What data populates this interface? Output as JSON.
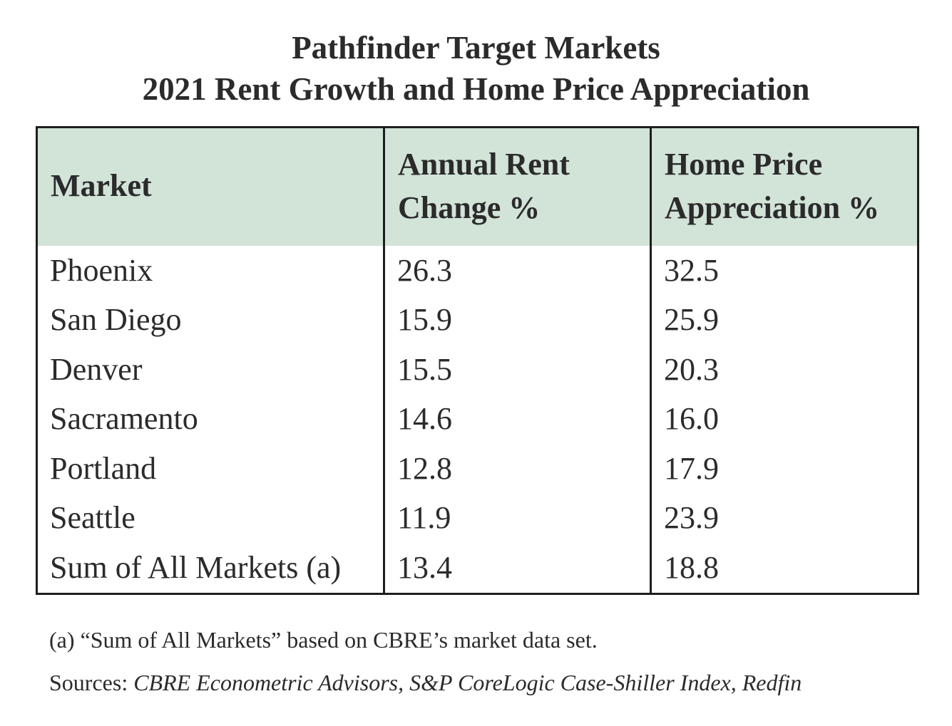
{
  "chart_data": {
    "type": "table",
    "title": "Pathfinder Target Markets",
    "subtitle": "2021 Rent Growth and Home Price Appreciation",
    "columns": [
      "Market",
      "Annual Rent Change %",
      "Home Price Appreciation %"
    ],
    "rows": [
      {
        "market": "Phoenix",
        "rent": "26.3",
        "home": "32.5"
      },
      {
        "market": "San Diego",
        "rent": "15.9",
        "home": "25.9"
      },
      {
        "market": "Denver",
        "rent": "15.5",
        "home": "20.3"
      },
      {
        "market": "Sacramento",
        "rent": "14.6",
        "home": "16.0"
      },
      {
        "market": "Portland",
        "rent": "12.8",
        "home": "17.9"
      },
      {
        "market": "Seattle",
        "rent": "11.9",
        "home": "23.9"
      },
      {
        "market": "Sum of All Markets (a)",
        "rent": "13.4",
        "home": "18.8"
      }
    ],
    "footnote": "(a) “Sum of All Markets” based on CBRE’s market data set.",
    "sources_label": "Sources:",
    "sources": "CBRE Econometric Advisors, S&P CoreLogic Case-Shiller Index, Redfin"
  },
  "colors": {
    "header_fill": "#d2e3d8",
    "border": "#1e1e1e",
    "text": "#2b2b2b"
  }
}
